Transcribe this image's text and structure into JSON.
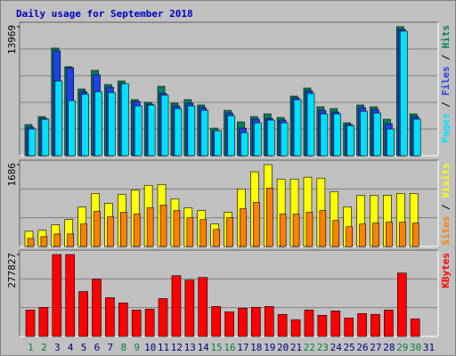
{
  "title": "Daily usage for September 2018",
  "legend_separator": " / ",
  "chart_data": [
    {
      "type": "bar",
      "ylim": [
        0,
        13969
      ],
      "yticks": [
        13969
      ],
      "series": [
        {
          "name": "Hits",
          "color": "#008060",
          "values": [
            3372,
            4239,
            11657,
            9634,
            7225,
            9248,
            7707,
            8092,
            6069,
            5780,
            7514,
            5684,
            6069,
            5491,
            2986,
            4913,
            3661,
            4239,
            4528,
            4142,
            6455,
            7322,
            5298,
            5106,
            3565,
            5491,
            5298,
            3950,
            13969,
            4528,
            0
          ]
        },
        {
          "name": "Files",
          "color": "#2040e8",
          "values": [
            3083,
            4046,
            11368,
            9537,
            6936,
            8767,
            7418,
            7803,
            5876,
            5587,
            6743,
            5395,
            5684,
            5202,
            2697,
            4624,
            2986,
            3950,
            4046,
            3854,
            6262,
            7032,
            4913,
            4720,
            3372,
            5202,
            5009,
            3468,
            13680,
            4239,
            0
          ]
        },
        {
          "name": "Pages",
          "color": "#00e0ff",
          "values": [
            2890,
            3950,
            8092,
            5972,
            6647,
            6936,
            6840,
            7803,
            5395,
            5491,
            6551,
            5106,
            5395,
            4913,
            2697,
            4335,
            2505,
            3565,
            3854,
            3565,
            6069,
            6743,
            4528,
            4528,
            3275,
            4817,
            4624,
            2890,
            13487,
            3950,
            0
          ]
        }
      ]
    },
    {
      "type": "bar",
      "ylim": [
        0,
        1686
      ],
      "yticks": [
        1686
      ],
      "series": [
        {
          "name": "Visits",
          "color": "#ffff00",
          "values": [
            315,
            333,
            445,
            556,
            815,
            1093,
            889,
            1075,
            1167,
            1260,
            1278,
            982,
            797,
            741,
            463,
            704,
            1186,
            1538,
            1686,
            1390,
            1390,
            1427,
            1408,
            1130,
            815,
            1056,
            1056,
            1056,
            1093,
            1093,
            0
          ]
        },
        {
          "name": "Sites",
          "color": "#ff8000",
          "values": [
            167,
            204,
            259,
            259,
            463,
            723,
            611,
            704,
            667,
            797,
            852,
            741,
            593,
            556,
            352,
            593,
            778,
            908,
            1204,
            667,
            667,
            704,
            741,
            537,
            408,
            463,
            482,
            500,
            500,
            482,
            0
          ]
        }
      ]
    },
    {
      "type": "bar",
      "ylim": [
        0,
        277827
      ],
      "yticks": [
        277827
      ],
      "categories": [
        "1",
        "2",
        "3",
        "4",
        "5",
        "6",
        "7",
        "8",
        "9",
        "10",
        "11",
        "12",
        "13",
        "14",
        "15",
        "16",
        "17",
        "18",
        "19",
        "20",
        "21",
        "22",
        "23",
        "24",
        "25",
        "26",
        "27",
        "28",
        "29",
        "30",
        "31"
      ],
      "category_colors": [
        "#008040",
        "#008040",
        "#000080",
        "#000080",
        "#000080",
        "#000080",
        "#000080",
        "#008040",
        "#008040",
        "#000080",
        "#000080",
        "#000080",
        "#000080",
        "#000080",
        "#008040",
        "#008040",
        "#000080",
        "#000080",
        "#000080",
        "#000080",
        "#000080",
        "#008040",
        "#008040",
        "#000080",
        "#000080",
        "#000080",
        "#000080",
        "#000080",
        "#008040",
        "#008040",
        "#000080"
      ],
      "series": [
        {
          "name": "KBytes",
          "color": "#ff0000",
          "values": [
            89622,
            98584,
            277827,
            277827,
            152357,
            194182,
            131446,
            113522,
            89622,
            92610,
            128459,
            206130,
            191194,
            200157,
            101572,
            83648,
            95597,
            98584,
            101572,
            74685,
            56761,
            89622,
            71698,
            86635,
            62735,
            77673,
            74685,
            89622,
            215093,
            59748,
            0
          ]
        }
      ]
    }
  ]
}
